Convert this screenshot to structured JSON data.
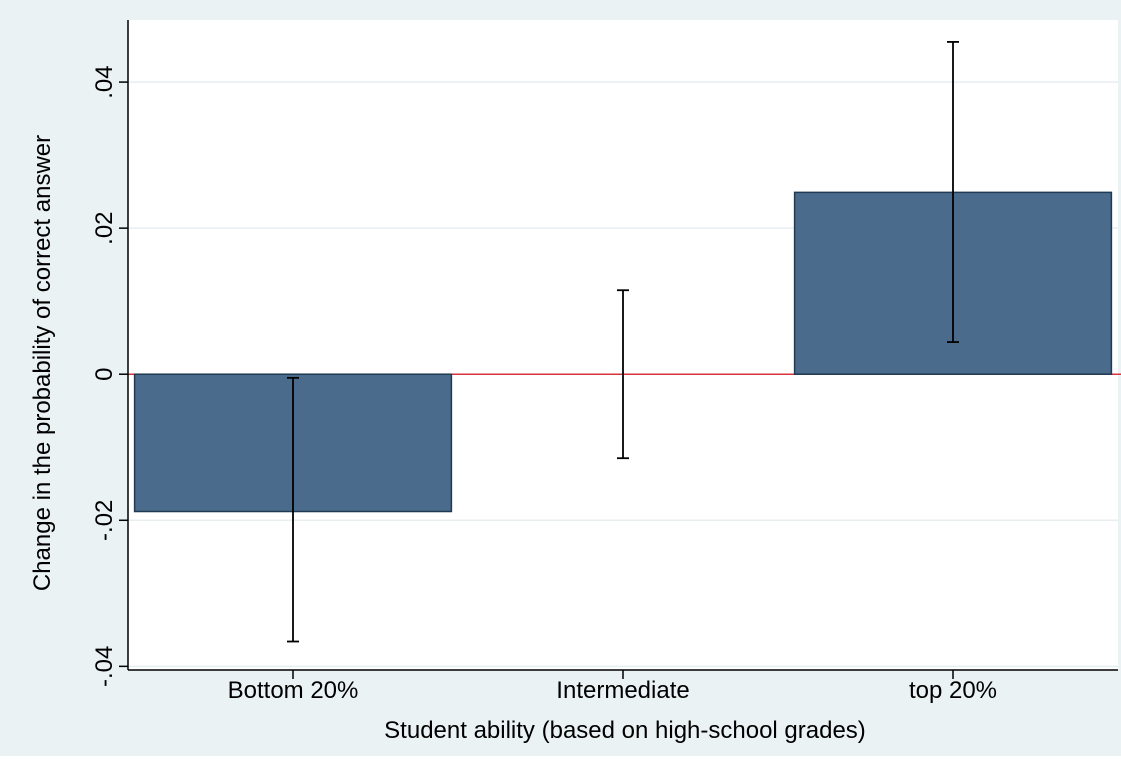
{
  "chart_data": {
    "type": "bar",
    "categories": [
      "Bottom 20%",
      "Intermediate",
      "top 20%"
    ],
    "values": [
      -0.0188,
      0.0,
      0.0249
    ],
    "error_bars": {
      "lower": [
        -0.0366,
        -0.0115,
        0.0044
      ],
      "upper": [
        -0.0005,
        0.0115,
        0.0455
      ]
    },
    "xlabel": "Student ability (based on high-school grades)",
    "ylabel": "Change in the probability of correct answer",
    "ylim": [
      -0.0405,
      0.0485
    ],
    "yticks": [
      -0.04,
      -0.02,
      0,
      0.02,
      0.04
    ],
    "ytick_labels": [
      "-.04",
      "-.02",
      "0",
      ".02",
      ".04"
    ],
    "grid": true,
    "reference_line": 0,
    "colors": {
      "background": "#eaf2f3",
      "plot_background": "#ffffff",
      "bar_fill": "#4a6b8c",
      "bar_stroke": "#1f3a52",
      "gridline": "#e8eef0",
      "zero_line": "#d8343c",
      "error_bar": "#000000"
    }
  }
}
